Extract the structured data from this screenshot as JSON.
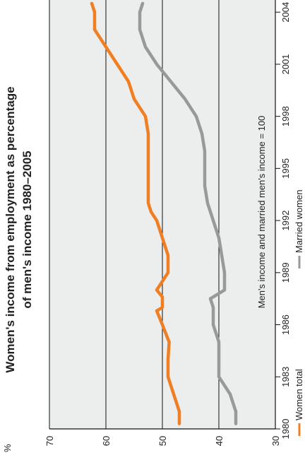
{
  "chart_data": {
    "type": "line",
    "title_line1": "Women's income from employment as percentage",
    "title_line2": "of men's income 1980–2005",
    "y_unit": "%",
    "note": "Men's income and married men's income = 100",
    "xlim": [
      1980,
      2004.7
    ],
    "ylim": [
      30,
      70
    ],
    "x_ticks": [
      1980,
      1983,
      1986,
      1989,
      1992,
      1995,
      1998,
      2001,
      2004
    ],
    "y_ticks": [
      30,
      40,
      50,
      60,
      70
    ],
    "grid": true,
    "orientation": "rotated-90-ccw",
    "legend_position": "bottom",
    "series": [
      {
        "name": "Women total",
        "color": "#F07F24",
        "x": [
          1980.3,
          1981,
          1982,
          1983,
          1984,
          1985,
          1986,
          1986.8,
          1987,
          1987.6,
          1988,
          1989,
          1990,
          1991,
          1992,
          1992.5,
          1993,
          1994,
          1995,
          1996,
          1997,
          1998,
          1999,
          2000,
          2001,
          2002,
          2003,
          2004,
          2004.5
        ],
        "y": [
          47,
          47,
          48,
          49,
          49,
          48.8,
          50,
          51,
          50,
          50,
          51,
          49,
          49,
          50,
          51,
          52,
          52.5,
          52.5,
          52.5,
          52.5,
          52.5,
          53,
          55,
          56,
          58,
          60,
          62,
          62,
          62.5
        ]
      },
      {
        "name": "Married women",
        "color": "#999999",
        "x": [
          1980.3,
          1981,
          1982,
          1983,
          1984,
          1985,
          1986,
          1987,
          1987.5,
          1988,
          1989,
          1990,
          1991,
          1992,
          1993,
          1994,
          1995,
          1996,
          1997,
          1998,
          1999,
          2000,
          2001,
          2002,
          2003,
          2004,
          2004.5
        ],
        "y": [
          37,
          37,
          38,
          40,
          40,
          40,
          41,
          41,
          41.5,
          39,
          39,
          39.5,
          40,
          41,
          42,
          42.5,
          42.5,
          42.5,
          43,
          44,
          46,
          48.5,
          51,
          53,
          54,
          54,
          53.5
        ]
      }
    ]
  }
}
